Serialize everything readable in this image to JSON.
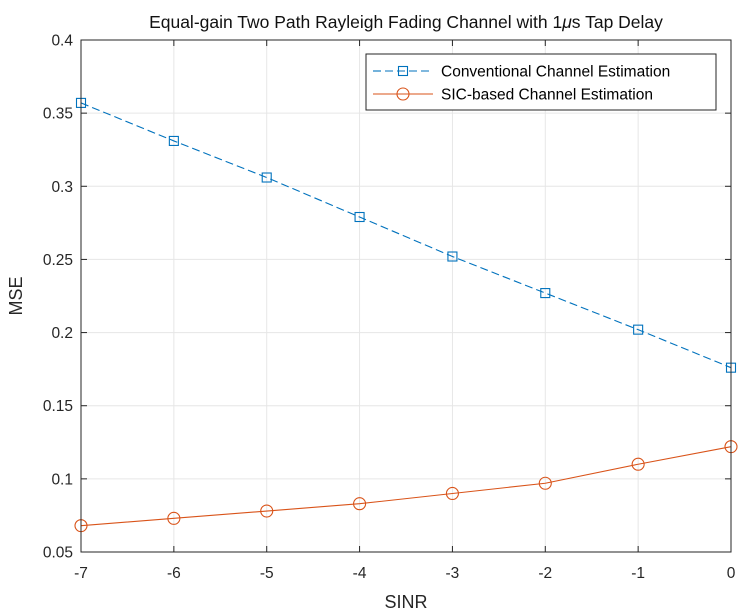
{
  "chart_data": {
    "type": "line",
    "title": "Equal-gain Two Path Rayleigh Fading Channel with 1μs Tap Delay",
    "title_parts": {
      "before": "Equal-gain Two Path Rayleigh Fading Channel with 1",
      "mu": "μ",
      "after": "s Tap Delay"
    },
    "xlabel": "SINR",
    "ylabel": "MSE",
    "xlim": [
      -7,
      0
    ],
    "ylim": [
      0.05,
      0.4
    ],
    "xticks": [
      -7,
      -6,
      -5,
      -4,
      -3,
      -2,
      -1,
      0
    ],
    "xtick_labels": [
      "-7",
      "-6",
      "-5",
      "-4",
      "-3",
      "-2",
      "-1",
      "0"
    ],
    "yticks": [
      0.05,
      0.1,
      0.15,
      0.2,
      0.25,
      0.3,
      0.35,
      0.4
    ],
    "ytick_labels": [
      "0.05",
      "0.1",
      "0.15",
      "0.2",
      "0.25",
      "0.3",
      "0.35",
      "0.4"
    ],
    "grid": true,
    "legend_position": "top-right",
    "x": [
      -7,
      -6,
      -5,
      -4,
      -3,
      -2,
      -1,
      0
    ],
    "series": [
      {
        "name": "Conventional Channel Estimation",
        "color": "#0072BD",
        "line_style": "dashed",
        "marker": "square",
        "values": [
          0.357,
          0.331,
          0.306,
          0.279,
          0.252,
          0.227,
          0.202,
          0.176
        ]
      },
      {
        "name": "SIC-based Channel Estimation",
        "color": "#D95319",
        "line_style": "solid",
        "marker": "circle",
        "values": [
          0.068,
          0.073,
          0.078,
          0.083,
          0.09,
          0.097,
          0.11,
          0.122
        ]
      }
    ]
  }
}
